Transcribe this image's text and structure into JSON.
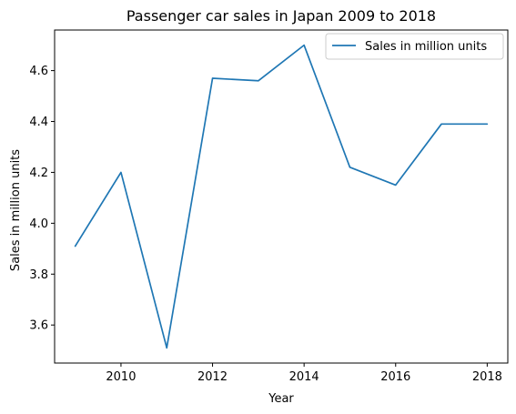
{
  "chart_data": {
    "type": "line",
    "title": "Passenger car sales in Japan 2009 to 2018",
    "xlabel": "Year",
    "ylabel": "Sales in million units",
    "x": [
      2009,
      2010,
      2011,
      2012,
      2013,
      2014,
      2015,
      2016,
      2017,
      2018
    ],
    "series": [
      {
        "name": "Sales in million units",
        "color": "#1f77b4",
        "values": [
          3.91,
          4.2,
          3.51,
          4.57,
          4.56,
          4.7,
          4.22,
          4.15,
          4.39,
          4.39
        ]
      }
    ],
    "xlim": [
      2008.55,
      2018.45
    ],
    "ylim": [
      3.4505,
      4.7595
    ],
    "xticks": [
      "2010",
      "2012",
      "2014",
      "2016",
      "2018"
    ],
    "yticks": [
      "3.6",
      "3.8",
      "4.0",
      "4.2",
      "4.4",
      "4.6"
    ],
    "grid": false,
    "legend_position": "upper right"
  }
}
